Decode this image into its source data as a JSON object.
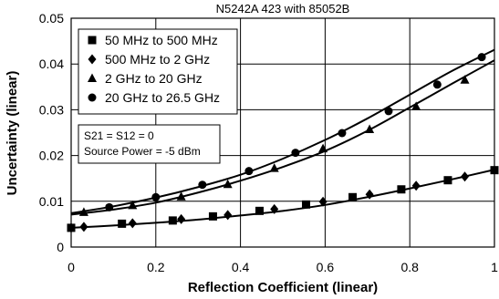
{
  "chart_data": {
    "type": "line",
    "title": "N5242A 423 with 85052B",
    "xlabel": "Reflection Coefficient (linear)",
    "ylabel": "Uncertainty (linear)",
    "xlim": [
      0,
      1
    ],
    "ylim": [
      0,
      0.05
    ],
    "xticks": [
      "0",
      "0.2",
      "0.4",
      "0.6",
      "0.8",
      "1"
    ],
    "yticks": [
      "0",
      "0.01",
      "0.02",
      "0.03",
      "0.04",
      "0.05"
    ],
    "grid": true,
    "legend_position": "top-left",
    "annotation": [
      "S21 = S12 = 0",
      "Source Power = -5 dBm"
    ],
    "series": [
      {
        "name": "50 MHz to 500 MHz",
        "marker": "square",
        "x": [
          0,
          0.12,
          0.24,
          0.335,
          0.445,
          0.555,
          0.665,
          0.78,
          0.89,
          1.0
        ],
        "y": [
          0.0042,
          0.0051,
          0.0058,
          0.0067,
          0.0079,
          0.0093,
          0.0109,
          0.0126,
          0.0146,
          0.0168
        ]
      },
      {
        "name": "500 MHz to 2 GHz",
        "marker": "diamond",
        "x": [
          0,
          0.03,
          0.145,
          0.26,
          0.37,
          0.48,
          0.595,
          0.705,
          0.815,
          0.93
        ],
        "y": [
          0.0042,
          0.0044,
          0.0052,
          0.0061,
          0.007,
          0.0083,
          0.0099,
          0.0115,
          0.0134,
          0.0154
        ]
      },
      {
        "name": "2 GHz to 20 GHz",
        "marker": "triangle",
        "x": [
          0.03,
          0.145,
          0.26,
          0.37,
          0.48,
          0.595,
          0.705,
          0.815,
          0.93
        ],
        "y": [
          0.0076,
          0.0091,
          0.011,
          0.0137,
          0.0172,
          0.0215,
          0.0257,
          0.0307,
          0.0365
        ]
      },
      {
        "name": "20 GHz to 26.5 GHz",
        "marker": "circle",
        "x": [
          0.09,
          0.2,
          0.31,
          0.42,
          0.53,
          0.64,
          0.75,
          0.865,
          0.97
        ],
        "y": [
          0.0087,
          0.0109,
          0.0136,
          0.0166,
          0.0206,
          0.0249,
          0.0297,
          0.0355,
          0.0415
        ]
      }
    ],
    "series_curves": [
      {
        "x": [
          0,
          0.1,
          0.2,
          0.3,
          0.4,
          0.5,
          0.6,
          0.7,
          0.8,
          0.9,
          1.0
        ],
        "y": [
          0.0042,
          0.0047,
          0.0053,
          0.006,
          0.0069,
          0.0079,
          0.0092,
          0.0109,
          0.0128,
          0.0148,
          0.0169
        ]
      },
      {
        "x": [
          0,
          0.1,
          0.2,
          0.3,
          0.4,
          0.5,
          0.6,
          0.7,
          0.8,
          0.9,
          1.0
        ],
        "y": [
          0.0071,
          0.0082,
          0.0097,
          0.0119,
          0.0145,
          0.0175,
          0.021,
          0.0254,
          0.0305,
          0.0357,
          0.0408
        ]
      },
      {
        "x": [
          0,
          0.1,
          0.2,
          0.3,
          0.4,
          0.5,
          0.6,
          0.7,
          0.8,
          0.9,
          1.0
        ],
        "y": [
          0.0074,
          0.0089,
          0.0108,
          0.0131,
          0.0158,
          0.0193,
          0.0234,
          0.0281,
          0.0333,
          0.0385,
          0.0431
        ]
      }
    ],
    "colors": {
      "line": "#000000",
      "grid": "#000000",
      "background": "#ffffff"
    }
  }
}
